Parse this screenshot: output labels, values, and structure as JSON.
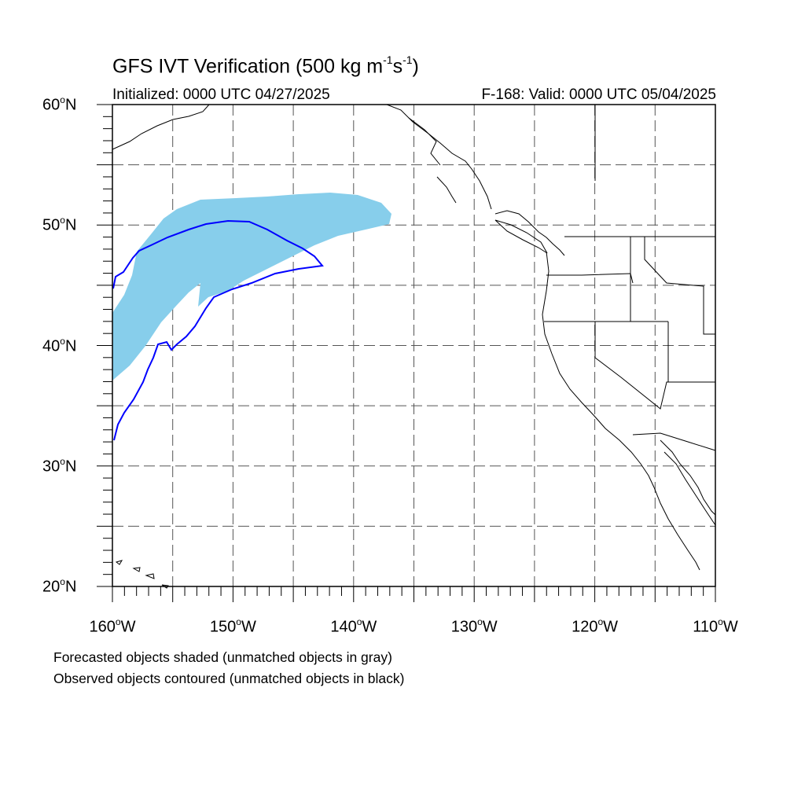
{
  "title": {
    "main": "GFS IVT Verification (500 kg m",
    "exp1": "-1",
    "mid": "s",
    "exp2": "-1",
    "end": ")"
  },
  "initialized": "Initialized: 0000 UTC 04/27/2025",
  "valid": "F-168: Valid: 0000 UTC 05/04/2025",
  "degree_symbol": "o",
  "lat_labels": [
    {
      "value": "60",
      "hemi": "N"
    },
    {
      "value": "50",
      "hemi": "N"
    },
    {
      "value": "40",
      "hemi": "N"
    },
    {
      "value": "30",
      "hemi": "N"
    },
    {
      "value": "20",
      "hemi": "N"
    }
  ],
  "lon_labels": [
    {
      "value": "160",
      "hemi": "W"
    },
    {
      "value": "150",
      "hemi": "W"
    },
    {
      "value": "140",
      "hemi": "W"
    },
    {
      "value": "130",
      "hemi": "W"
    },
    {
      "value": "120",
      "hemi": "W"
    },
    {
      "value": "110",
      "hemi": "W"
    }
  ],
  "footer": {
    "line1": "Forecasted objects shaded (unmatched objects in gray)",
    "line2": "Observed objects contoured (unmatched objects in black)"
  },
  "map": {
    "lon_range": [
      -160,
      -110
    ],
    "lat_range": [
      20,
      60
    ],
    "grid_interval_deg": 5,
    "grid_style": "dashed",
    "forecast_fill_color": "#87CEEB",
    "observed_contour_color": "#0000FF",
    "coastline_color": "#000000"
  }
}
